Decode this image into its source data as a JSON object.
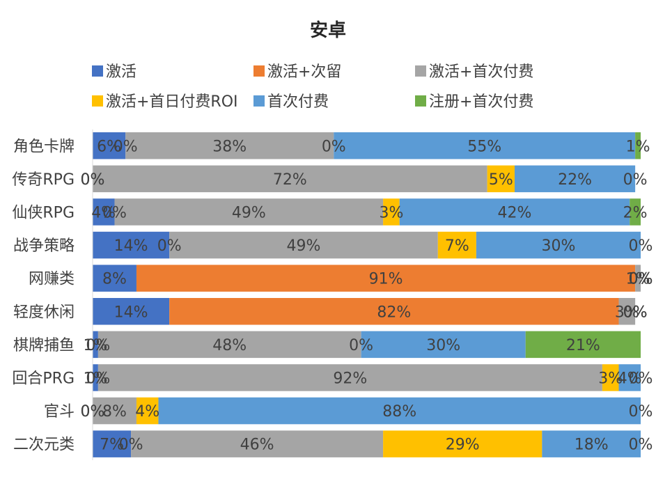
{
  "chart_data": {
    "type": "bar",
    "orientation": "horizontal",
    "stacked": "percent",
    "title": "安卓",
    "categories": [
      "角色卡牌",
      "传奇RPG",
      "仙侠RPG",
      "战争策略",
      "网赚类",
      "轻度休闲",
      "棋牌捕鱼",
      "回合PRG",
      "官斗",
      "二次元类"
    ],
    "series": [
      {
        "name": "激活",
        "color": "#4472C4",
        "values": [
          6,
          0,
          4,
          14,
          8,
          14,
          1,
          1,
          0,
          7
        ]
      },
      {
        "name": "激活+次留",
        "color": "#ED7D31",
        "values": [
          0,
          0,
          0,
          0,
          91,
          82,
          0,
          0,
          0,
          0
        ]
      },
      {
        "name": "激活+首次付费",
        "color": "#A5A5A5",
        "values": [
          38,
          72,
          49,
          49,
          1,
          3,
          48,
          92,
          8,
          46
        ]
      },
      {
        "name": "激活+首日付费ROI",
        "color": "#FFC000",
        "values": [
          0,
          5,
          3,
          7,
          0,
          0,
          0,
          3,
          4,
          29
        ]
      },
      {
        "name": "首次付费",
        "color": "#5B9BD5",
        "values": [
          55,
          22,
          42,
          30,
          0,
          0,
          30,
          4,
          88,
          18
        ]
      },
      {
        "name": "注册+首次付费",
        "color": "#70AD47",
        "values": [
          1,
          0,
          2,
          0,
          0,
          0,
          21,
          0,
          0,
          0
        ]
      }
    ],
    "xlim": [
      0,
      100
    ],
    "grid": false,
    "legend_position": "top",
    "data_label_format": "percent"
  }
}
